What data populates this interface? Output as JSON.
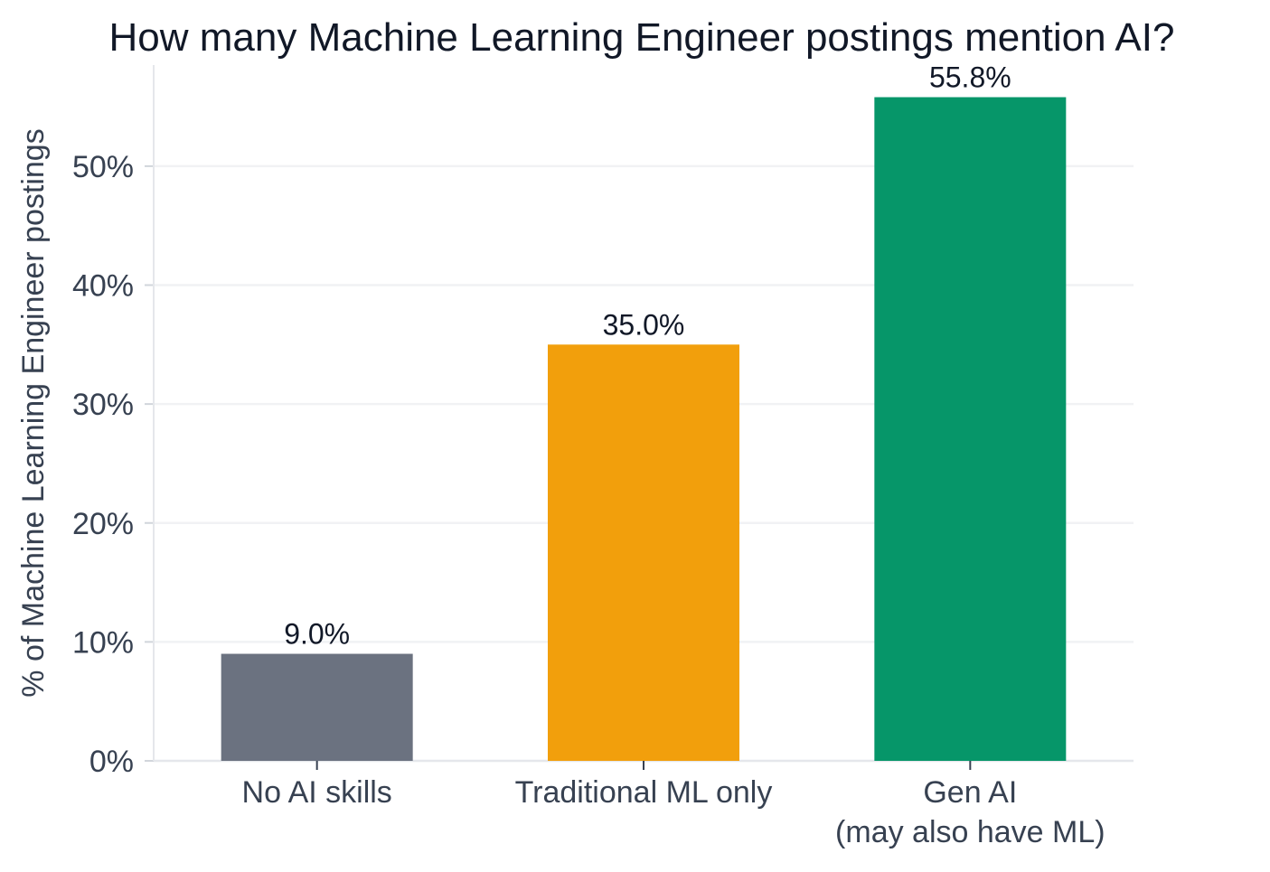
{
  "chart_data": {
    "type": "bar",
    "title": "How many Machine Learning Engineer postings mention AI?",
    "xlabel": "",
    "ylabel": "% of Machine Learning Engineer postings",
    "categories": [
      [
        "No AI skills"
      ],
      [
        "Traditional ML only"
      ],
      [
        "Gen AI",
        "(may also have ML)"
      ]
    ],
    "values": [
      9.0,
      35.0,
      55.8
    ],
    "value_labels": [
      "9.0%",
      "35.0%",
      "55.8%"
    ],
    "colors": [
      "#6b7280",
      "#f29f0c",
      "#069669"
    ],
    "ylim": [
      0,
      58.5
    ],
    "yticks": [
      0,
      10,
      20,
      30,
      40,
      50
    ],
    "ytick_labels": [
      "0%",
      "10%",
      "20%",
      "30%",
      "40%",
      "50%"
    ],
    "grid": true,
    "legend": "none"
  }
}
